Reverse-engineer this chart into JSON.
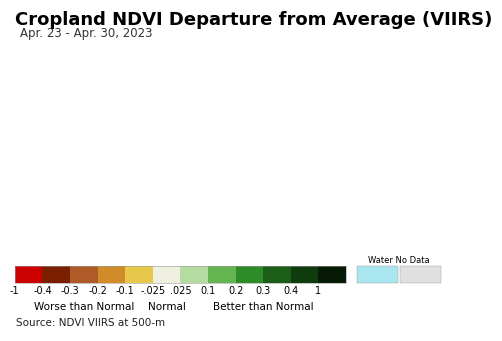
{
  "title": "Cropland NDVI Departure from Average (VIIRS)",
  "subtitle": "Apr. 23 - Apr. 30, 2023",
  "source_text": "Source: NDVI VIIRS at 500-m",
  "colorbar_colors": [
    "#cc0000",
    "#7a2000",
    "#b05a28",
    "#d08c28",
    "#e8c84a",
    "#f0f0e0",
    "#b4dca0",
    "#64b450",
    "#2e8c28",
    "#1a5e18",
    "#0e3c0c",
    "#061a05"
  ],
  "colorbar_tick_labels": [
    "-1",
    "-0.4",
    "-0.3",
    "-0.2",
    "-0.1",
    "-.025",
    ".025",
    "0.1",
    "0.2",
    "0.3",
    "0.4",
    "1"
  ],
  "water_color": "#aae6f0",
  "nodata_color": "#e0e0e0",
  "label_worse": "Worse than Normal",
  "label_normal": "Normal",
  "label_better": "Better than Normal",
  "label_water_nodata": "Water No Data",
  "background_color": "#ffffff",
  "source_bg_color": "#e8e8e8",
  "ocean_color": "#c0ecf4",
  "land_color": "#e0ddd0",
  "title_fontsize": 13,
  "subtitle_fontsize": 8.5,
  "source_fontsize": 7.5,
  "tick_fontsize": 7,
  "label_fontsize": 7.5,
  "map_extent": [
    -180,
    180,
    -58,
    82
  ]
}
